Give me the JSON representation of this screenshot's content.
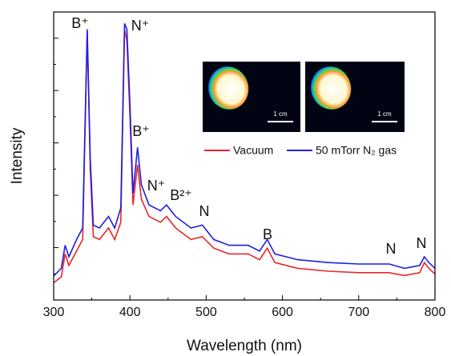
{
  "chart_data": {
    "type": "line",
    "x_label": "Wavelength (nm)",
    "y_label": "Intensity",
    "xlim": [
      300,
      800
    ],
    "xticks": [
      300,
      400,
      500,
      600,
      700,
      800
    ],
    "ylim": [
      0,
      100
    ],
    "x": [
      300,
      310,
      315,
      320,
      330,
      338,
      344,
      348,
      352,
      360,
      372,
      380,
      388,
      393,
      396,
      400,
      404,
      410,
      415,
      425,
      440,
      448,
      460,
      480,
      495,
      510,
      530,
      555,
      570,
      580,
      590,
      620,
      660,
      700,
      740,
      760,
      780,
      786,
      792,
      800
    ],
    "series": [
      {
        "name": "Vacuum",
        "color": "#e8262b",
        "values": [
          6,
          8,
          16,
          12,
          17,
          21,
          93,
          45,
          22,
          21,
          25,
          21,
          27,
          94,
          90,
          64,
          33,
          47,
          35,
          29,
          27,
          29,
          25,
          21,
          22,
          18,
          16,
          16,
          14,
          18,
          13,
          11,
          10,
          9.5,
          9.5,
          8.5,
          9.5,
          13,
          11,
          9
        ]
      },
      {
        "name": "50 mTorr N₂ gas",
        "color": "#1f1fe0",
        "values": [
          8.3,
          11,
          19,
          15,
          21,
          25,
          94,
          49,
          26,
          25,
          29,
          25,
          32,
          96,
          94,
          68,
          37,
          53,
          40,
          33,
          31,
          33,
          29,
          25,
          26,
          21,
          19,
          19,
          17,
          21,
          16,
          14,
          13,
          12.5,
          12.5,
          11,
          12,
          15,
          13,
          11
        ]
      }
    ],
    "annotations": [
      "B⁺",
      "N⁺",
      "B⁺",
      "N⁺",
      "B²⁺",
      "N",
      "B",
      "N",
      "N"
    ],
    "insets": [
      {
        "scale_label": "1 cm"
      },
      {
        "scale_label": "1 cm"
      }
    ]
  }
}
